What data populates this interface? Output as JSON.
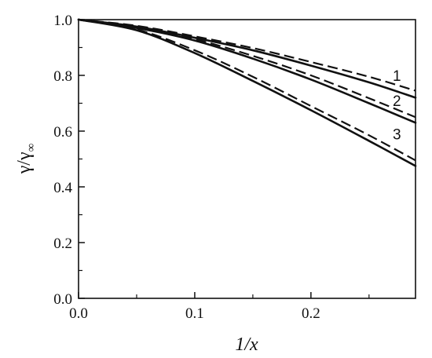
{
  "chart_data": {
    "type": "line",
    "xlabel": "1/x",
    "ylabel": "γ/γ∞",
    "xlim": [
      0,
      0.29
    ],
    "ylim": [
      0,
      1.0
    ],
    "x_ticks": [
      0.0,
      0.1,
      0.2
    ],
    "x_tick_labels": [
      "0.0",
      "0.1",
      "0.2"
    ],
    "y_ticks": [
      0.0,
      0.2,
      0.4,
      0.6,
      0.8,
      1.0
    ],
    "y_tick_labels": [
      "0.0",
      "0.2",
      "0.4",
      "0.6",
      "0.8",
      "1.0"
    ],
    "grid": false,
    "x": [
      0.0,
      0.05,
      0.1,
      0.15,
      0.2,
      0.25,
      0.29
    ],
    "series": [
      {
        "label": "1",
        "style": "solid",
        "values": [
          1.0,
          0.975,
          0.935,
          0.89,
          0.835,
          0.775,
          0.72
        ]
      },
      {
        "label": "1",
        "style": "dashed",
        "values": [
          1.0,
          0.978,
          0.94,
          0.898,
          0.848,
          0.795,
          0.745
        ]
      },
      {
        "label": "2",
        "style": "solid",
        "values": [
          1.0,
          0.97,
          0.925,
          0.86,
          0.785,
          0.7,
          0.63
        ]
      },
      {
        "label": "2",
        "style": "dashed",
        "values": [
          1.0,
          0.972,
          0.93,
          0.87,
          0.8,
          0.718,
          0.65
        ]
      },
      {
        "label": "3",
        "style": "solid",
        "values": [
          1.0,
          0.962,
          0.88,
          0.78,
          0.675,
          0.565,
          0.475
        ]
      },
      {
        "label": "3",
        "style": "dashed",
        "values": [
          1.0,
          0.965,
          0.89,
          0.795,
          0.69,
          0.585,
          0.495
        ]
      }
    ],
    "curve_labels": [
      {
        "text": "1",
        "x": 0.274,
        "y": 0.78
      },
      {
        "text": "2",
        "x": 0.274,
        "y": 0.69
      },
      {
        "text": "3",
        "x": 0.274,
        "y": 0.57
      }
    ]
  }
}
